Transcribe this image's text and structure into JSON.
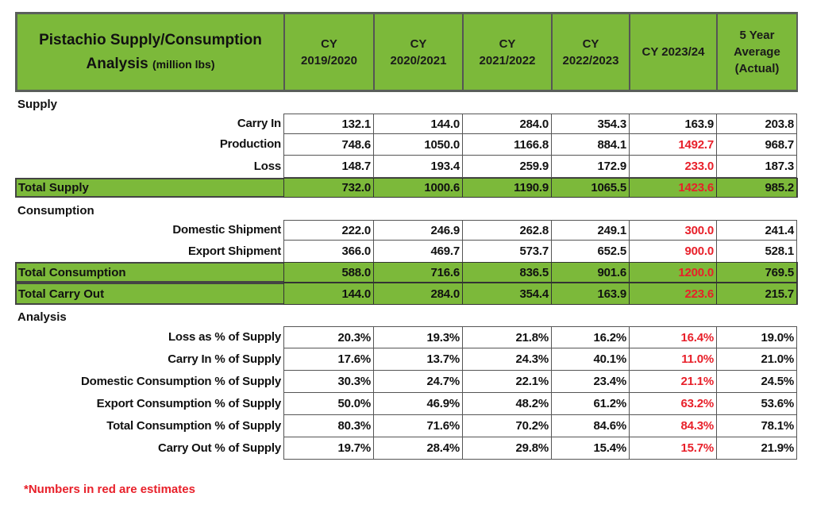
{
  "header": {
    "title_line1": "Pistachio Supply/Consumption",
    "title_line2": "Analysis",
    "title_unit": "(million lbs)",
    "columns": [
      [
        "CY",
        "2019/2020"
      ],
      [
        "CY",
        "2020/2021"
      ],
      [
        "CY",
        "2021/2022"
      ],
      [
        "CY",
        "2022/2023"
      ],
      [
        "CY 2023/24"
      ],
      [
        "5 Year",
        "Average",
        "(Actual)"
      ]
    ]
  },
  "colors": {
    "header_green": "#7cb93a",
    "estimate_red": "#e8202a"
  },
  "sections": [
    {
      "title": "Supply",
      "rows": [
        {
          "label": "Carry In",
          "values": [
            "132.1",
            "144.0",
            "284.0",
            "354.3",
            "163.9",
            "203.8"
          ],
          "estimate": false
        },
        {
          "label": "Production",
          "values": [
            "748.6",
            "1050.0",
            "1166.8",
            "884.1",
            "1492.7",
            "968.7"
          ],
          "estimate": true
        },
        {
          "label": "Loss",
          "values": [
            "148.7",
            "193.4",
            "259.9",
            "172.9",
            "233.0",
            "187.3"
          ],
          "estimate": true
        }
      ],
      "totals": [
        {
          "label": "Total Supply",
          "values": [
            "732.0",
            "1000.6",
            "1190.9",
            "1065.5",
            "1423.6",
            "985.2"
          ],
          "estimate": true
        }
      ]
    },
    {
      "title": "Consumption",
      "rows": [
        {
          "label": "Domestic Shipment",
          "values": [
            "222.0",
            "246.9",
            "262.8",
            "249.1",
            "300.0",
            "241.4"
          ],
          "estimate": true
        },
        {
          "label": "Export Shipment",
          "values": [
            "366.0",
            "469.7",
            "573.7",
            "652.5",
            "900.0",
            "528.1"
          ],
          "estimate": true
        }
      ],
      "totals": [
        {
          "label": "Total Consumption",
          "values": [
            "588.0",
            "716.6",
            "836.5",
            "901.6",
            "1200.0",
            "769.5"
          ],
          "estimate": true
        },
        {
          "label": "Total Carry Out",
          "values": [
            "144.0",
            "284.0",
            "354.4",
            "163.9",
            "223.6",
            "215.7"
          ],
          "estimate": true
        }
      ]
    },
    {
      "title": "Analysis",
      "rows": [
        {
          "label": "Loss as % of Supply",
          "values": [
            "20.3%",
            "19.3%",
            "21.8%",
            "16.2%",
            "16.4%",
            "19.0%"
          ],
          "estimate": true
        },
        {
          "label": "Carry In % of Supply",
          "values": [
            "17.6%",
            "13.7%",
            "24.3%",
            "40.1%",
            "11.0%",
            "21.0%"
          ],
          "estimate": true
        },
        {
          "label": "Domestic Consumption % of Supply",
          "values": [
            "30.3%",
            "24.7%",
            "22.1%",
            "23.4%",
            "21.1%",
            "24.5%"
          ],
          "estimate": true
        },
        {
          "label": "Export Consumption % of Supply",
          "values": [
            "50.0%",
            "46.9%",
            "48.2%",
            "61.2%",
            "63.2%",
            "53.6%"
          ],
          "estimate": true
        },
        {
          "label": "Total Consumption % of Supply",
          "values": [
            "80.3%",
            "71.6%",
            "70.2%",
            "84.6%",
            "84.3%",
            "78.1%"
          ],
          "estimate": true
        },
        {
          "label": "Carry Out % of Supply",
          "values": [
            "19.7%",
            "28.4%",
            "29.8%",
            "15.4%",
            "15.7%",
            "21.9%"
          ],
          "estimate": true
        }
      ],
      "totals": []
    }
  ],
  "estimate_column_index": 4,
  "footnote": "*Numbers in red are estimates"
}
